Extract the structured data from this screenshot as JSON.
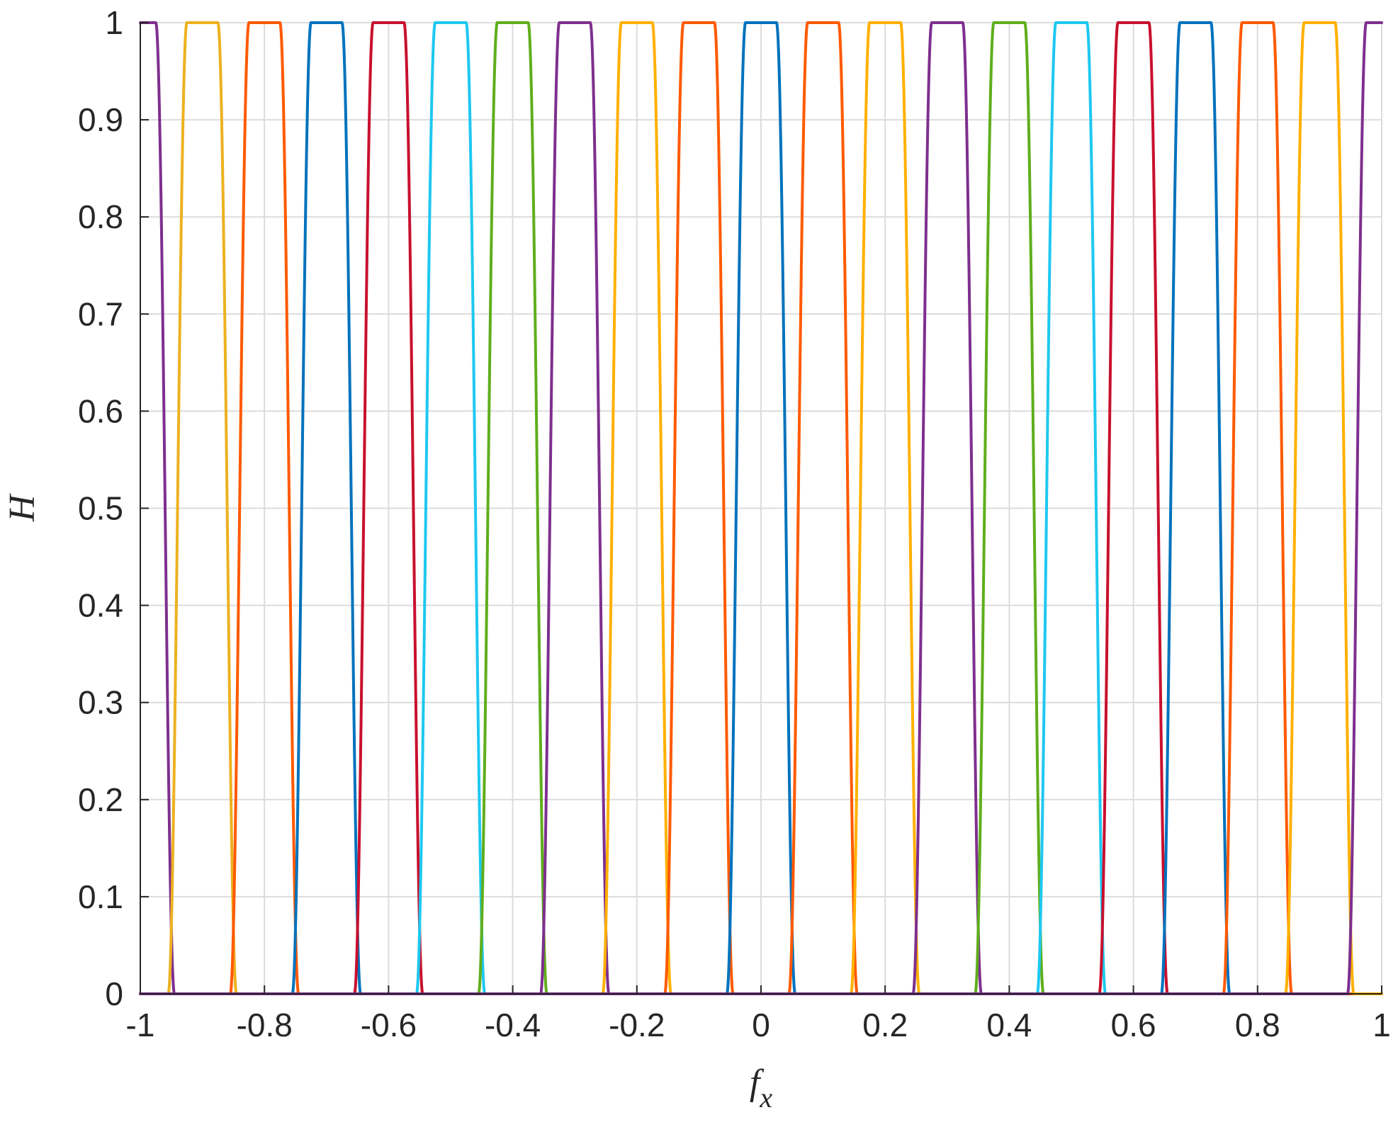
{
  "chart_data": {
    "type": "line",
    "title": "",
    "xlabel": "f",
    "xlabel_subscript": "x",
    "ylabel": "H",
    "xlim": [
      -1,
      1
    ],
    "ylim": [
      0,
      1
    ],
    "grid": true,
    "legend": "none",
    "x_ticks": [
      -1,
      -0.8,
      -0.6,
      -0.4,
      -0.2,
      0,
      0.2,
      0.4,
      0.6,
      0.8,
      1
    ],
    "x_tick_labels": [
      "-1",
      "-0.8",
      "-0.6",
      "-0.4",
      "-0.2",
      "0",
      "0.2",
      "0.4",
      "0.6",
      "0.8",
      "1"
    ],
    "y_ticks": [
      0,
      0.1,
      0.2,
      0.3,
      0.4,
      0.5,
      0.6,
      0.7,
      0.8,
      0.9,
      1
    ],
    "y_tick_labels": [
      "0",
      "0.1",
      "0.2",
      "0.3",
      "0.4",
      "0.5",
      "0.6",
      "0.7",
      "0.8",
      "0.9",
      "1"
    ],
    "passband": {
      "center_spacing": 0.1,
      "flat_top_width": 0.05,
      "transition_width": 0.03
    },
    "series": [
      {
        "center": -1.0,
        "color": "#7e2f8e"
      },
      {
        "center": -0.9,
        "color": "#edb120"
      },
      {
        "center": -0.8,
        "color": "#ff5a00"
      },
      {
        "center": -0.7,
        "color": "#0072bd"
      },
      {
        "center": -0.6,
        "color": "#c8102e"
      },
      {
        "center": -0.5,
        "color": "#1ec8f0"
      },
      {
        "center": -0.4,
        "color": "#5fae1c"
      },
      {
        "center": -0.3,
        "color": "#7e2f8e"
      },
      {
        "center": -0.2,
        "color": "#ffb000"
      },
      {
        "center": -0.1,
        "color": "#ff5a00"
      },
      {
        "center": 0.0,
        "color": "#0072bd"
      },
      {
        "center": 0.1,
        "color": "#ff5a00"
      },
      {
        "center": 0.2,
        "color": "#ffb000"
      },
      {
        "center": 0.3,
        "color": "#7e2f8e"
      },
      {
        "center": 0.4,
        "color": "#5fae1c"
      },
      {
        "center": 0.5,
        "color": "#1ec8f0"
      },
      {
        "center": 0.6,
        "color": "#c8102e"
      },
      {
        "center": 0.7,
        "color": "#0072bd"
      },
      {
        "center": 0.8,
        "color": "#ff5a00"
      },
      {
        "center": 0.9,
        "color": "#ffb000"
      },
      {
        "center": 1.0,
        "color": "#7e2f8e"
      }
    ]
  }
}
